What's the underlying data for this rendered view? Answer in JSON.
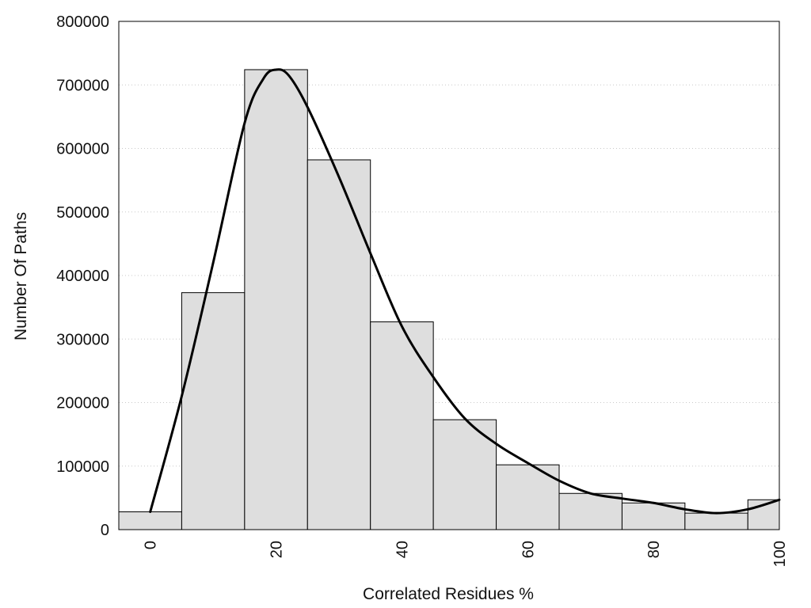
{
  "chart_data": {
    "type": "bar",
    "subtype": "histogram with smooth density curve",
    "xlabel": "Correlated Residues %",
    "ylabel": "Number Of Paths",
    "xlim": [
      -5,
      100
    ],
    "ylim": [
      0,
      800000
    ],
    "x_ticks": [
      "0",
      "20",
      "40",
      "60",
      "80",
      "100"
    ],
    "y_ticks": [
      "0",
      "100000",
      "200000",
      "300000",
      "400000",
      "500000",
      "600000",
      "700000",
      "800000"
    ],
    "grid": "horizontal dotted",
    "legend": "none",
    "bin_width": 10,
    "bins": [
      {
        "center": 0,
        "value": 28000
      },
      {
        "center": 10,
        "value": 373000
      },
      {
        "center": 20,
        "value": 724000
      },
      {
        "center": 30,
        "value": 582000
      },
      {
        "center": 40,
        "value": 327000
      },
      {
        "center": 50,
        "value": 173000
      },
      {
        "center": 60,
        "value": 102000
      },
      {
        "center": 70,
        "value": 57000
      },
      {
        "center": 80,
        "value": 42000
      },
      {
        "center": 90,
        "value": 26000
      },
      {
        "center": 100,
        "value": 47000
      }
    ],
    "curve": {
      "x": [
        0,
        5,
        10,
        15,
        18,
        20,
        22,
        25,
        30,
        35,
        40,
        45,
        50,
        55,
        60,
        65,
        70,
        75,
        80,
        85,
        90,
        95,
        100
      ],
      "y": [
        28000,
        210000,
        420000,
        640000,
        710000,
        724000,
        715000,
        665000,
        555000,
        435000,
        320000,
        240000,
        175000,
        135000,
        105000,
        77000,
        57000,
        49000,
        42000,
        32000,
        26000,
        32000,
        47000
      ]
    },
    "colors": {
      "bar_fill": "#dedede",
      "bar_stroke": "#000000",
      "curve": "#000000",
      "grid": "#c8c8c8"
    }
  }
}
